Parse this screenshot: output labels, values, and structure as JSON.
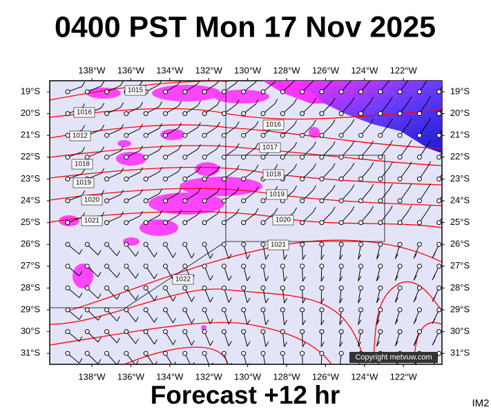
{
  "header": {
    "title": "0400 PST Mon 17 Nov 2025"
  },
  "footer": {
    "title": "Forecast +12 hr",
    "image_id": "IM2"
  },
  "map": {
    "lon_labels": [
      "138°W",
      "136°W",
      "134°W",
      "132°W",
      "130°W",
      "128°W",
      "126°W",
      "124°W",
      "122°W"
    ],
    "lat_labels": [
      "19°S",
      "20°S",
      "21°S",
      "22°S",
      "23°S",
      "24°S",
      "25°S",
      "26°S",
      "27°S",
      "28°S",
      "29°S",
      "30°S",
      "31°S"
    ],
    "isobar_labels": [
      "1015",
      "1016",
      "1012",
      "1018",
      "1019",
      "1020",
      "1021",
      "1016",
      "1017",
      "1018",
      "1019",
      "1020",
      "1021",
      "1022"
    ],
    "copyright": "Copyright metvuw.com"
  }
}
